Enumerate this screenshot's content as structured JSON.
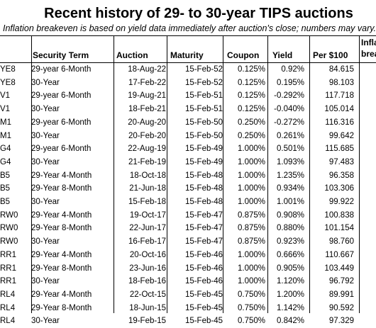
{
  "title": "Recent history of 29- to 30-year TIPS auctions",
  "subtitle": "Inflation breakeven is based on yield data immediately after auction's close; numbers may vary.",
  "headers": {
    "security_term": "Security Term",
    "auction": "Auction",
    "maturity": "Maturity",
    "coupon": "Coupon",
    "yield": "Yield",
    "per100": "Per $100",
    "infl_line1": "Infla",
    "infl_line2": "breal"
  },
  "rows": [
    {
      "cusip": "YE8",
      "term": "29-year 6-Month",
      "auction": "18-Aug-22",
      "maturity": "15-Feb-52",
      "coupon": "0.125%",
      "yield": "0.92%",
      "price": "84.615"
    },
    {
      "cusip": "YE8",
      "term": "30-Year",
      "auction": "17-Feb-22",
      "maturity": "15-Feb-52",
      "coupon": "0.125%",
      "yield": "0.195%",
      "price": "98.103"
    },
    {
      "cusip": "V1",
      "term": "29-year 6-Month",
      "auction": "19-Aug-21",
      "maturity": "15-Feb-51",
      "coupon": "0.125%",
      "yield": "-0.292%",
      "price": "117.718"
    },
    {
      "cusip": "V1",
      "term": "30-Year",
      "auction": "18-Feb-21",
      "maturity": "15-Feb-51",
      "coupon": "0.125%",
      "yield": "-0.040%",
      "price": "105.014"
    },
    {
      "cusip": "M1",
      "term": "29-year 6-Month",
      "auction": "20-Aug-20",
      "maturity": "15-Feb-50",
      "coupon": "0.250%",
      "yield": "-0.272%",
      "price": "116.316"
    },
    {
      "cusip": "M1",
      "term": "30-Year",
      "auction": "20-Feb-20",
      "maturity": "15-Feb-50",
      "coupon": "0.250%",
      "yield": "0.261%",
      "price": "99.642"
    },
    {
      "cusip": "G4",
      "term": "29-year 6-Month",
      "auction": "22-Aug-19",
      "maturity": "15-Feb-49",
      "coupon": "1.000%",
      "yield": "0.501%",
      "price": "115.685"
    },
    {
      "cusip": "G4",
      "term": "30-Year",
      "auction": "21-Feb-19",
      "maturity": "15-Feb-49",
      "coupon": "1.000%",
      "yield": "1.093%",
      "price": "97.483"
    },
    {
      "cusip": "B5",
      "term": "29-Year 4-Month",
      "auction": "18-Oct-18",
      "maturity": "15-Feb-48",
      "coupon": "1.000%",
      "yield": "1.235%",
      "price": "96.358"
    },
    {
      "cusip": "B5",
      "term": "29-Year 8-Month",
      "auction": "21-Jun-18",
      "maturity": "15-Feb-48",
      "coupon": "1.000%",
      "yield": "0.934%",
      "price": "103.306"
    },
    {
      "cusip": "B5",
      "term": "30-Year",
      "auction": "15-Feb-18",
      "maturity": "15-Feb-48",
      "coupon": "1.000%",
      "yield": "1.001%",
      "price": "99.922"
    },
    {
      "cusip": "RW0",
      "term": "29-Year 4-Month",
      "auction": "19-Oct-17",
      "maturity": "15-Feb-47",
      "coupon": "0.875%",
      "yield": "0.908%",
      "price": "100.838"
    },
    {
      "cusip": "RW0",
      "term": "29-Year 8-Month",
      "auction": "22-Jun-17",
      "maturity": "15-Feb-47",
      "coupon": "0.875%",
      "yield": "0.880%",
      "price": "101.154"
    },
    {
      "cusip": "RW0",
      "term": "30-Year",
      "auction": "16-Feb-17",
      "maturity": "15-Feb-47",
      "coupon": "0.875%",
      "yield": "0.923%",
      "price": "98.760"
    },
    {
      "cusip": "RR1",
      "term": "29-Year 4-Month",
      "auction": "20-Oct-16",
      "maturity": "15-Feb-46",
      "coupon": "1.000%",
      "yield": "0.666%",
      "price": "110.667"
    },
    {
      "cusip": "RR1",
      "term": "29-Year 8-Month",
      "auction": "23-Jun-16",
      "maturity": "15-Feb-46",
      "coupon": "1.000%",
      "yield": "0.905%",
      "price": "103.449"
    },
    {
      "cusip": "RR1",
      "term": "30-Year",
      "auction": "18-Feb-16",
      "maturity": "15-Feb-46",
      "coupon": "1.000%",
      "yield": "1.120%",
      "price": "96.792"
    },
    {
      "cusip": "RL4",
      "term": "29-Year 4-Month",
      "auction": "22-Oct-15",
      "maturity": "15-Feb-45",
      "coupon": "0.750%",
      "yield": "1.200%",
      "price": "89.991"
    },
    {
      "cusip": "RL4",
      "term": "29-Year 8-Month",
      "auction": "18-Jun-15",
      "maturity": "15-Feb-45",
      "coupon": "0.750%",
      "yield": "1.142%",
      "price": "90.592"
    },
    {
      "cusip": "RL4",
      "term": "30-Year",
      "auction": "19-Feb-15",
      "maturity": "15-Feb-45",
      "coupon": "0.750%",
      "yield": "0.842%",
      "price": "97.329"
    }
  ]
}
